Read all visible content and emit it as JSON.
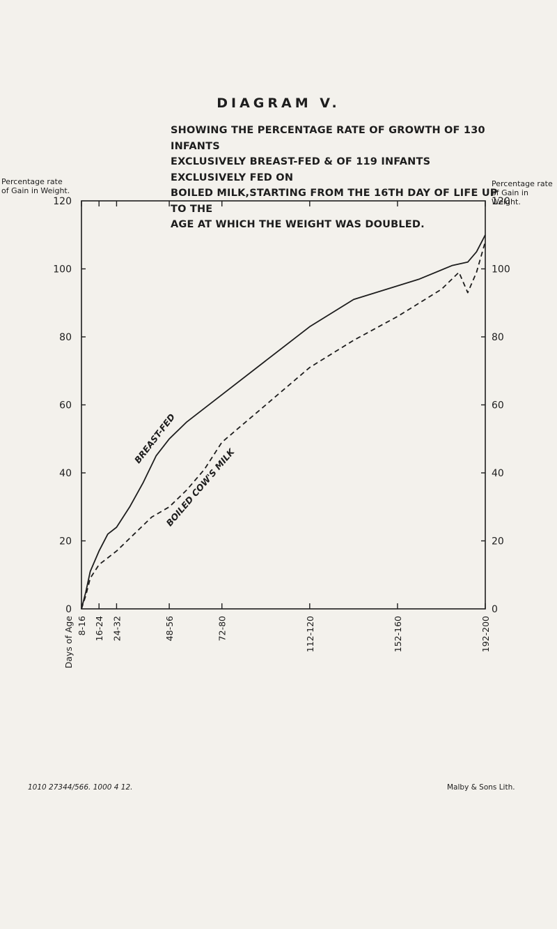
{
  "page": {
    "heading": "DIAGRAM V.",
    "subtitle_lines": [
      "SHOWING THE PERCENTAGE RATE OF GROWTH OF 130 INFANTS",
      "EXCLUSIVELY BREAST-FED & OF 119 INFANTS EXCLUSIVELY FED ON",
      "BOILED MILK,STARTING FROM THE 16TH DAY OF LIFE UP TO THE",
      "AGE AT WHICH THE WEIGHT WAS DOUBLED."
    ],
    "left_axis_caption": [
      "Percentage rate",
      "of Gain in Weight."
    ],
    "right_axis_caption": [
      "Percentage rate",
      "of Gain in Weight."
    ],
    "footer_left": "1010 27344/566. 1000 4 12.",
    "footer_right": "Malby & Sons Lith."
  },
  "colors": {
    "ink": "#1d1d1d",
    "paper": "#f3f1ec"
  },
  "chart_data": {
    "type": "line",
    "x_axis_title": "Days of Age",
    "x_tick_labels": [
      "8-16",
      "16-24",
      "24-32",
      "48-56",
      "72-80",
      "112-120",
      "152-160",
      "192-200"
    ],
    "x": [
      16,
      24,
      32,
      56,
      80,
      120,
      160,
      200
    ],
    "ylim": [
      0,
      120
    ],
    "y_ticks": [
      0,
      20,
      40,
      60,
      80,
      100,
      120
    ],
    "grid": false,
    "series": [
      {
        "name": "BREAST-FED",
        "style": "solid",
        "points": [
          [
            16,
            0
          ],
          [
            18,
            5
          ],
          [
            20,
            11
          ],
          [
            24,
            17
          ],
          [
            28,
            22
          ],
          [
            32,
            24
          ],
          [
            38,
            30
          ],
          [
            44,
            37
          ],
          [
            50,
            45
          ],
          [
            56,
            50
          ],
          [
            64,
            55
          ],
          [
            72,
            59
          ],
          [
            80,
            63
          ],
          [
            100,
            73
          ],
          [
            120,
            83
          ],
          [
            140,
            91
          ],
          [
            150,
            93
          ],
          [
            160,
            95
          ],
          [
            170,
            97
          ],
          [
            185,
            101
          ],
          [
            192,
            102
          ],
          [
            196,
            105
          ],
          [
            200,
            110
          ]
        ]
      },
      {
        "name": "BOILED COW'S MILK",
        "style": "dashed",
        "points": [
          [
            16,
            0
          ],
          [
            18,
            4
          ],
          [
            20,
            9
          ],
          [
            24,
            13
          ],
          [
            32,
            17
          ],
          [
            48,
            27
          ],
          [
            56,
            30
          ],
          [
            64,
            35
          ],
          [
            72,
            41
          ],
          [
            80,
            49
          ],
          [
            100,
            60
          ],
          [
            120,
            71
          ],
          [
            140,
            79
          ],
          [
            160,
            86
          ],
          [
            180,
            94
          ],
          [
            188,
            99
          ],
          [
            192,
            93
          ],
          [
            196,
            99
          ],
          [
            200,
            108
          ]
        ]
      }
    ]
  }
}
